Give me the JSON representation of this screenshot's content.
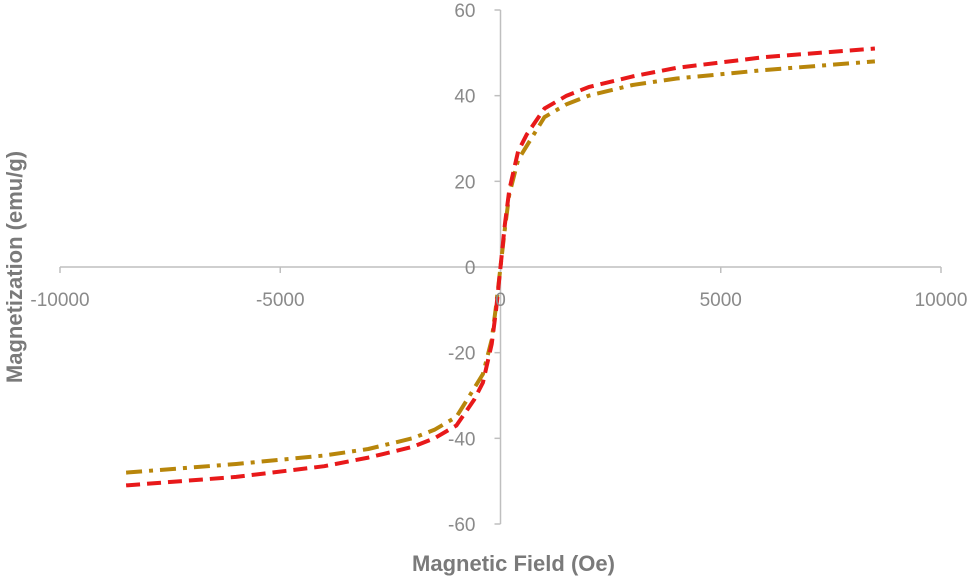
{
  "chart_data": {
    "type": "line",
    "title": "",
    "xlabel": "Magnetic Field (Oe)",
    "ylabel": "Magnetization (emu/g)",
    "xlim": [
      -10000,
      10000
    ],
    "ylim": [
      -60,
      60
    ],
    "x_ticks": [
      -10000,
      -5000,
      0,
      5000,
      10000
    ],
    "y_ticks": [
      -60,
      -40,
      -20,
      0,
      20,
      40,
      60
    ],
    "x_tick_labels": [
      "-10000",
      "-5000",
      "0",
      "5000",
      "10000"
    ],
    "y_tick_labels": [
      "-60",
      "-40",
      "-20",
      "0",
      "20",
      "40",
      "60"
    ],
    "grid": false,
    "legend": "none",
    "series": [
      {
        "color": "#b8860b",
        "dash": "dash-dot",
        "x": [
          -8500,
          -6000,
          -4000,
          -3000,
          -2000,
          -1500,
          -1000,
          -700,
          -400,
          -200,
          -100,
          0,
          100,
          200,
          400,
          700,
          1000,
          1500,
          2000,
          3000,
          4000,
          6000,
          8500
        ],
        "y": [
          -48,
          -46,
          -44,
          -42.5,
          -40,
          -38,
          -35,
          -30,
          -25,
          -17,
          -9,
          0,
          9,
          17,
          25,
          30,
          35,
          38,
          40,
          42.5,
          44,
          46,
          48
        ]
      },
      {
        "color": "#e8191a",
        "dash": "dash",
        "x": [
          -8500,
          -6000,
          -4000,
          -3000,
          -2000,
          -1500,
          -1000,
          -600,
          -400,
          -200,
          -100,
          0,
          100,
          200,
          400,
          600,
          1000,
          1500,
          2000,
          3000,
          4000,
          6000,
          8500
        ],
        "y": [
          -51,
          -49,
          -46.5,
          -44.5,
          -42,
          -40,
          -37,
          -31,
          -27,
          -18,
          -10,
          0,
          10,
          18,
          27,
          31,
          37,
          40,
          42,
          44.5,
          46.5,
          49,
          51
        ]
      }
    ]
  }
}
